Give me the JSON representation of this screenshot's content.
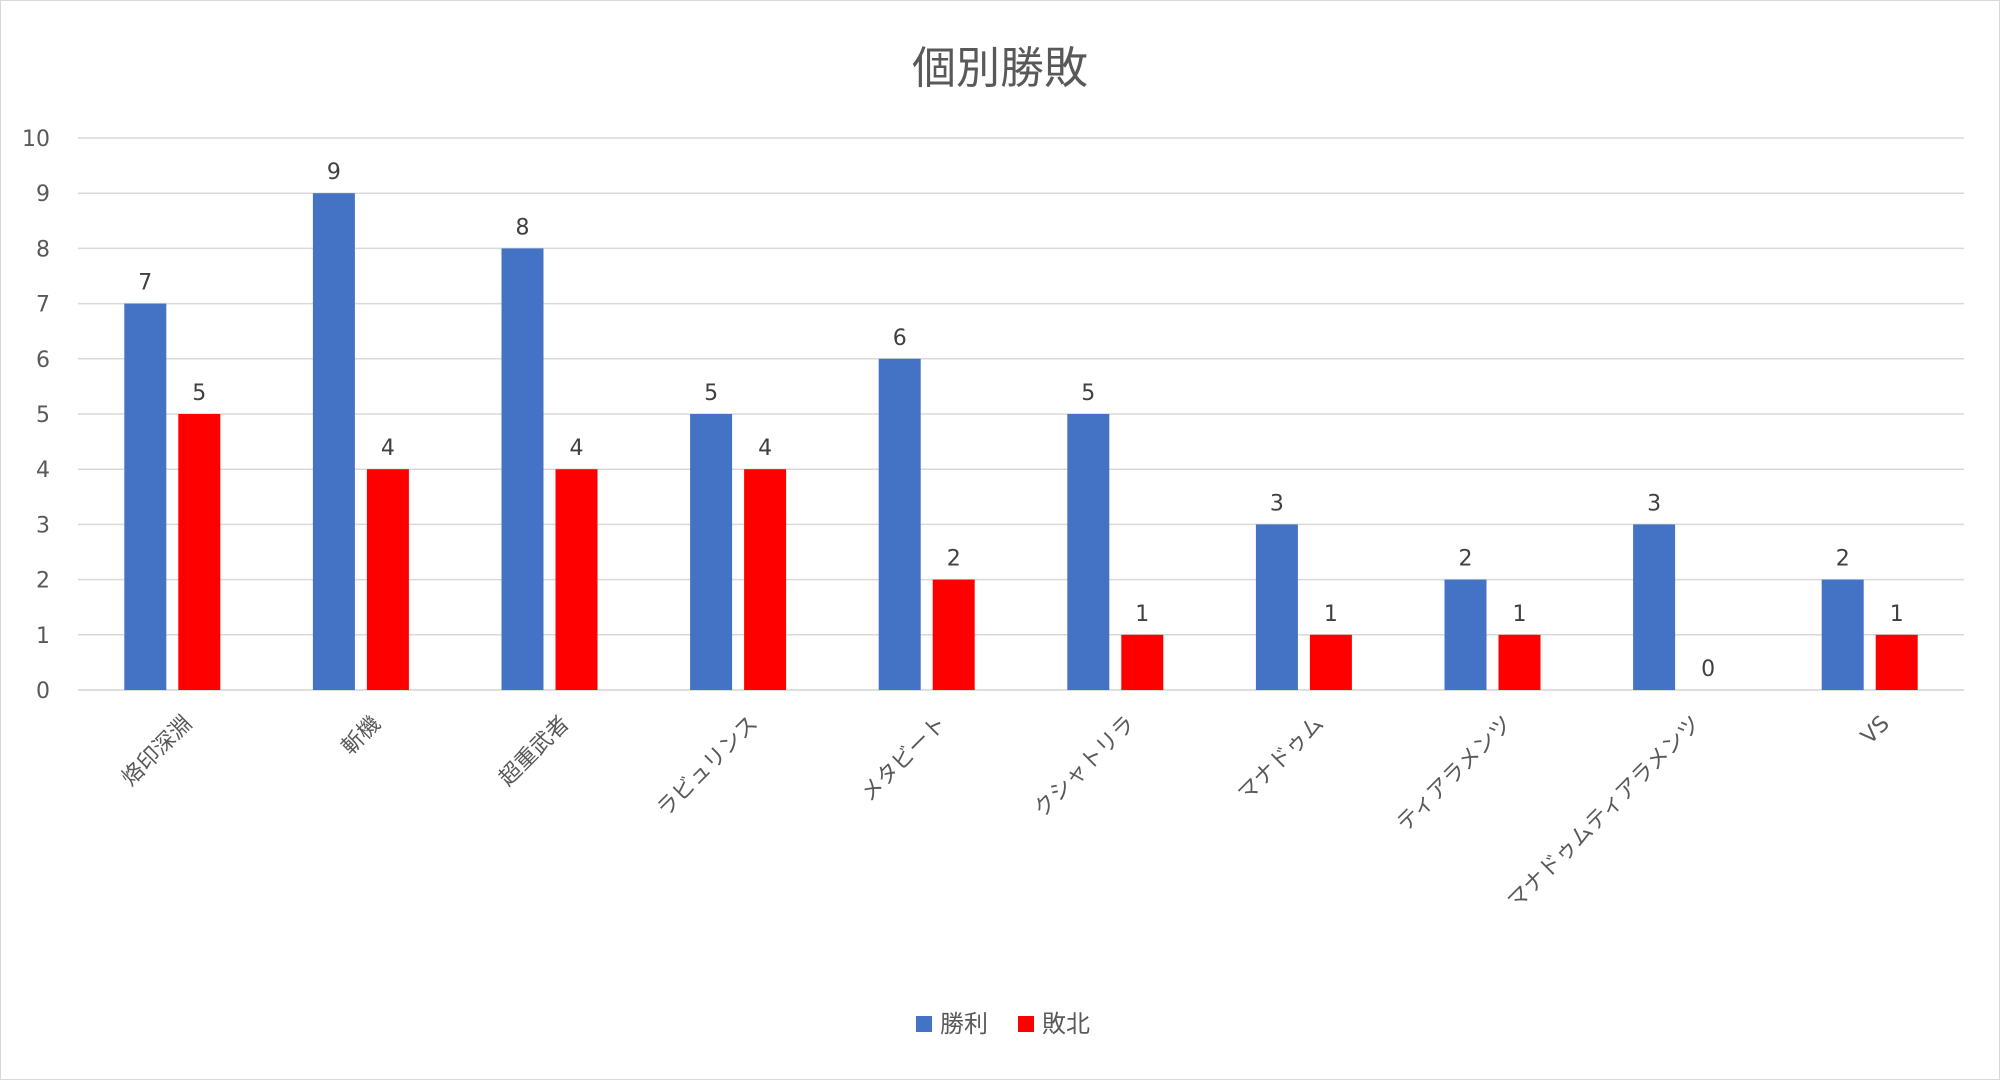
{
  "chart_data": {
    "type": "bar",
    "title": "個別勝敗",
    "xlabel": "",
    "ylabel": "",
    "ylim": [
      0,
      10
    ],
    "yticks": [
      "0",
      "1",
      "2",
      "3",
      "4",
      "5",
      "6",
      "7",
      "8",
      "9",
      "10"
    ],
    "grid": true,
    "legend_position": "bottom",
    "categories": [
      "烙印深淵",
      "斬機",
      "超重武者",
      "ラビュリンス",
      "メタビート",
      "クシャトリラ",
      "マナドゥム",
      "ティアラメンツ",
      "マナドゥムティアラメンツ",
      "VS"
    ],
    "series": [
      {
        "name": "勝利",
        "color": "#4472c4",
        "values": [
          7,
          9,
          8,
          5,
          6,
          5,
          3,
          2,
          3,
          2
        ]
      },
      {
        "name": "敗北",
        "color": "#ff0000",
        "values": [
          5,
          4,
          4,
          4,
          2,
          1,
          1,
          1,
          0,
          1
        ]
      }
    ]
  }
}
